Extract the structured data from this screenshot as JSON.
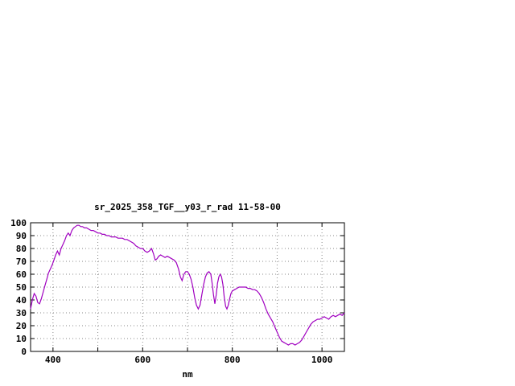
{
  "chart_data": {
    "type": "line",
    "title": "sr_2025_358_TGF__y03_r_rad 11-58-00",
    "xlabel": "nm",
    "ylabel": "",
    "xlim": [
      350,
      1050
    ],
    "ylim": [
      0,
      100
    ],
    "x_grid_ticks": [
      400,
      500,
      600,
      700,
      800,
      900,
      1000
    ],
    "x_tick_labels": [
      400,
      600,
      800,
      1000
    ],
    "y_ticks": [
      0,
      10,
      20,
      30,
      40,
      50,
      60,
      70,
      80,
      90,
      100
    ],
    "grid": true,
    "legend_position": "none",
    "line_color": "#a000c0",
    "series": [
      {
        "name": "sr_2025_358_TGF__y03_r_rad",
        "points": [
          [
            350,
            33
          ],
          [
            354,
            40
          ],
          [
            358,
            45
          ],
          [
            362,
            43
          ],
          [
            366,
            38
          ],
          [
            370,
            37
          ],
          [
            374,
            41
          ],
          [
            378,
            46
          ],
          [
            382,
            51
          ],
          [
            386,
            56
          ],
          [
            390,
            61
          ],
          [
            394,
            64
          ],
          [
            398,
            67
          ],
          [
            402,
            71
          ],
          [
            406,
            75
          ],
          [
            410,
            78
          ],
          [
            414,
            75
          ],
          [
            418,
            80
          ],
          [
            422,
            83
          ],
          [
            426,
            86
          ],
          [
            430,
            90
          ],
          [
            434,
            92
          ],
          [
            438,
            90
          ],
          [
            442,
            94
          ],
          [
            446,
            96
          ],
          [
            450,
            97
          ],
          [
            454,
            98
          ],
          [
            458,
            98
          ],
          [
            462,
            97
          ],
          [
            466,
            97
          ],
          [
            470,
            96
          ],
          [
            475,
            96
          ],
          [
            480,
            95
          ],
          [
            485,
            94
          ],
          [
            490,
            94
          ],
          [
            495,
            93
          ],
          [
            500,
            92
          ],
          [
            505,
            92
          ],
          [
            510,
            91
          ],
          [
            515,
            91
          ],
          [
            520,
            90
          ],
          [
            525,
            90
          ],
          [
            530,
            89
          ],
          [
            535,
            89
          ],
          [
            540,
            89
          ],
          [
            545,
            88
          ],
          [
            550,
            88
          ],
          [
            555,
            88
          ],
          [
            560,
            87
          ],
          [
            565,
            87
          ],
          [
            570,
            86
          ],
          [
            575,
            85
          ],
          [
            580,
            84
          ],
          [
            585,
            82
          ],
          [
            590,
            81
          ],
          [
            595,
            80
          ],
          [
            600,
            80
          ],
          [
            605,
            78
          ],
          [
            610,
            77
          ],
          [
            615,
            78
          ],
          [
            620,
            80
          ],
          [
            624,
            76
          ],
          [
            628,
            71
          ],
          [
            632,
            72
          ],
          [
            636,
            74
          ],
          [
            640,
            75
          ],
          [
            645,
            74
          ],
          [
            650,
            73
          ],
          [
            655,
            74
          ],
          [
            660,
            73
          ],
          [
            665,
            72
          ],
          [
            670,
            71
          ],
          [
            675,
            69
          ],
          [
            680,
            64
          ],
          [
            684,
            58
          ],
          [
            688,
            55
          ],
          [
            692,
            60
          ],
          [
            696,
            62
          ],
          [
            700,
            62
          ],
          [
            704,
            60
          ],
          [
            708,
            56
          ],
          [
            712,
            50
          ],
          [
            716,
            42
          ],
          [
            720,
            36
          ],
          [
            724,
            33
          ],
          [
            728,
            36
          ],
          [
            732,
            44
          ],
          [
            736,
            52
          ],
          [
            740,
            58
          ],
          [
            744,
            61
          ],
          [
            748,
            62
          ],
          [
            752,
            60
          ],
          [
            755,
            53
          ],
          [
            758,
            44
          ],
          [
            761,
            37
          ],
          [
            764,
            44
          ],
          [
            767,
            53
          ],
          [
            770,
            58
          ],
          [
            773,
            60
          ],
          [
            776,
            58
          ],
          [
            779,
            52
          ],
          [
            782,
            42
          ],
          [
            785,
            35
          ],
          [
            788,
            33
          ],
          [
            791,
            36
          ],
          [
            794,
            41
          ],
          [
            797,
            45
          ],
          [
            800,
            47
          ],
          [
            805,
            48
          ],
          [
            810,
            49
          ],
          [
            815,
            50
          ],
          [
            820,
            50
          ],
          [
            825,
            50
          ],
          [
            830,
            50
          ],
          [
            835,
            49
          ],
          [
            840,
            49
          ],
          [
            845,
            48
          ],
          [
            850,
            48
          ],
          [
            855,
            47
          ],
          [
            860,
            45
          ],
          [
            865,
            42
          ],
          [
            870,
            38
          ],
          [
            875,
            33
          ],
          [
            880,
            29
          ],
          [
            885,
            26
          ],
          [
            890,
            23
          ],
          [
            895,
            19
          ],
          [
            900,
            15
          ],
          [
            905,
            11
          ],
          [
            910,
            8
          ],
          [
            915,
            7
          ],
          [
            920,
            6
          ],
          [
            925,
            5
          ],
          [
            930,
            6
          ],
          [
            935,
            6
          ],
          [
            940,
            5
          ],
          [
            945,
            6
          ],
          [
            950,
            7
          ],
          [
            955,
            9
          ],
          [
            960,
            12
          ],
          [
            965,
            15
          ],
          [
            970,
            18
          ],
          [
            975,
            21
          ],
          [
            980,
            23
          ],
          [
            985,
            24
          ],
          [
            990,
            25
          ],
          [
            995,
            25
          ],
          [
            1000,
            26
          ],
          [
            1005,
            27
          ],
          [
            1010,
            26
          ],
          [
            1015,
            25
          ],
          [
            1020,
            27
          ],
          [
            1025,
            28
          ],
          [
            1030,
            27
          ],
          [
            1035,
            28
          ],
          [
            1040,
            29
          ],
          [
            1045,
            28
          ],
          [
            1050,
            30
          ]
        ]
      }
    ]
  }
}
